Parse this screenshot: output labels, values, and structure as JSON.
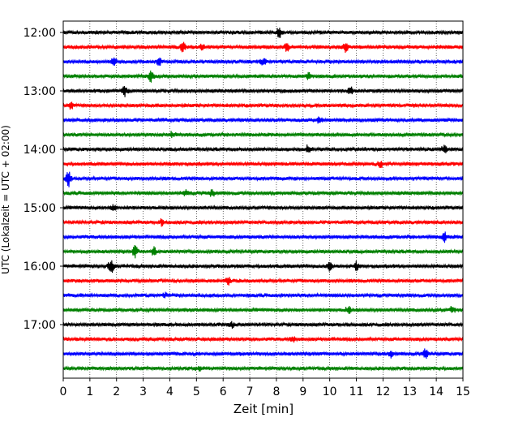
{
  "chart_data": {
    "type": "line",
    "title": "",
    "xlabel": "Zeit  [min]",
    "ylabel": "UTC (Lokalzeit = UTC + 02:00)",
    "xlim": [
      0,
      15
    ],
    "x_ticks": [
      0,
      1,
      2,
      3,
      4,
      5,
      6,
      7,
      8,
      9,
      10,
      11,
      12,
      13,
      14,
      15
    ],
    "y_ticks": [
      "12:00",
      "13:00",
      "14:00",
      "15:00",
      "16:00",
      "17:00"
    ],
    "grid": "vertical-dotted",
    "colors": [
      "#000000",
      "#ff0000",
      "#0000ff",
      "#008000"
    ],
    "traces": [
      {
        "start": "12:00",
        "color": "#000000",
        "events": [
          {
            "t": 8.1,
            "amp": 1.6
          }
        ]
      },
      {
        "start": "12:15",
        "color": "#ff0000",
        "events": [
          {
            "t": 4.5,
            "amp": 1.4
          },
          {
            "t": 5.2,
            "amp": 1.0
          },
          {
            "t": 8.4,
            "amp": 1.0
          },
          {
            "t": 10.6,
            "amp": 1.2
          }
        ]
      },
      {
        "start": "12:30",
        "color": "#0000ff",
        "events": [
          {
            "t": 1.9,
            "amp": 1.0
          },
          {
            "t": 3.6,
            "amp": 1.0
          },
          {
            "t": 7.5,
            "amp": 1.2
          }
        ]
      },
      {
        "start": "12:45",
        "color": "#008000",
        "events": [
          {
            "t": 3.3,
            "amp": 1.6
          },
          {
            "t": 9.2,
            "amp": 0.9
          }
        ]
      },
      {
        "start": "13:00",
        "color": "#000000",
        "events": [
          {
            "t": 2.3,
            "amp": 1.4
          },
          {
            "t": 10.8,
            "amp": 1.3
          }
        ]
      },
      {
        "start": "13:15",
        "color": "#ff0000",
        "events": [
          {
            "t": 0.3,
            "amp": 0.9
          }
        ]
      },
      {
        "start": "13:30",
        "color": "#0000ff",
        "events": [
          {
            "t": 9.6,
            "amp": 0.9
          }
        ]
      },
      {
        "start": "13:45",
        "color": "#008000",
        "events": [
          {
            "t": 4.1,
            "amp": 0.8
          }
        ]
      },
      {
        "start": "14:00",
        "color": "#000000",
        "events": [
          {
            "t": 9.2,
            "amp": 1.2
          },
          {
            "t": 14.3,
            "amp": 1.0
          }
        ]
      },
      {
        "start": "14:15",
        "color": "#ff0000",
        "events": [
          {
            "t": 11.9,
            "amp": 1.0
          }
        ]
      },
      {
        "start": "14:30",
        "color": "#0000ff",
        "events": [
          {
            "t": 0.2,
            "amp": 2.2
          }
        ]
      },
      {
        "start": "14:45",
        "color": "#008000",
        "events": [
          {
            "t": 4.6,
            "amp": 1.0
          },
          {
            "t": 5.6,
            "amp": 1.2
          }
        ]
      },
      {
        "start": "15:00",
        "color": "#000000",
        "events": [
          {
            "t": 1.9,
            "amp": 0.9
          }
        ]
      },
      {
        "start": "15:15",
        "color": "#ff0000",
        "events": [
          {
            "t": 3.7,
            "amp": 0.8
          }
        ]
      },
      {
        "start": "15:30",
        "color": "#0000ff",
        "events": [
          {
            "t": 14.3,
            "amp": 1.3
          }
        ]
      },
      {
        "start": "15:45",
        "color": "#008000",
        "events": [
          {
            "t": 2.7,
            "amp": 1.6
          },
          {
            "t": 3.4,
            "amp": 1.1
          }
        ]
      },
      {
        "start": "16:00",
        "color": "#000000",
        "events": [
          {
            "t": 1.8,
            "amp": 2.8
          },
          {
            "t": 10.0,
            "amp": 1.1
          },
          {
            "t": 11.0,
            "amp": 1.0
          }
        ]
      },
      {
        "start": "16:15",
        "color": "#ff0000",
        "events": [
          {
            "t": 6.2,
            "amp": 0.8
          }
        ]
      },
      {
        "start": "16:30",
        "color": "#0000ff",
        "events": [
          {
            "t": 3.8,
            "amp": 0.8
          }
        ]
      },
      {
        "start": "16:45",
        "color": "#008000",
        "events": [
          {
            "t": 10.7,
            "amp": 0.9
          },
          {
            "t": 14.6,
            "amp": 0.8
          }
        ]
      },
      {
        "start": "17:00",
        "color": "#000000",
        "events": [
          {
            "t": 6.3,
            "amp": 0.8
          }
        ]
      },
      {
        "start": "17:15",
        "color": "#ff0000",
        "events": [
          {
            "t": 8.6,
            "amp": 0.7
          }
        ]
      },
      {
        "start": "17:30",
        "color": "#0000ff",
        "events": [
          {
            "t": 12.3,
            "amp": 0.9
          },
          {
            "t": 13.6,
            "amp": 1.6
          }
        ]
      },
      {
        "start": "17:45",
        "color": "#008000",
        "events": [
          {
            "t": 5.1,
            "amp": 0.7
          }
        ]
      }
    ]
  }
}
